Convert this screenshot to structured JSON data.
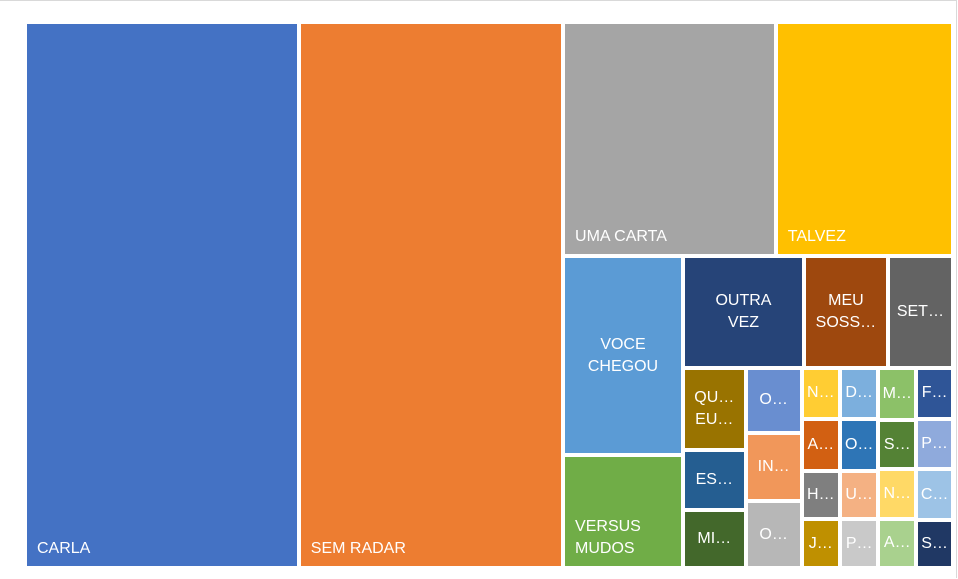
{
  "chart_data": {
    "type": "treemap",
    "categories": [
      "CARLA",
      "SEM RADAR",
      "UMA CARTA",
      "TALVEZ",
      "VOCE CHEGOU",
      "VERSUS MUDOS",
      "OUTRA VEZ",
      "MEU SOSS…",
      "SET…",
      "QU… EU…",
      "ES…",
      "MI…",
      "O…",
      "IN…",
      "O…",
      "N…",
      "A…",
      "H…",
      "J…",
      "D…",
      "O…",
      "U…",
      "P…",
      "M…",
      "S…",
      "N…",
      "A…",
      "F…",
      "P…",
      "C…",
      "S…"
    ],
    "values": [
      144,
      139,
      48,
      40,
      23,
      13,
      13,
      9,
      7,
      5,
      3.6,
      3.5,
      3.5,
      3.7,
      3.6,
      1.9,
      1.9,
      1.8,
      1.8,
      1.9,
      1.9,
      1.8,
      1.8,
      1.9,
      1.8,
      1.8,
      1.8,
      1.8,
      1.8,
      1.8,
      1.7
    ],
    "colors": [
      "#4472c4",
      "#ed7d31",
      "#a5a5a5",
      "#ffc000",
      "#5b9bd5",
      "#70ad47",
      "#264478",
      "#9e480e",
      "#636363",
      "#997300",
      "#255e91",
      "#43682b",
      "#698ed0",
      "#f1975a",
      "#b7b7b7",
      "#ffcd33",
      "#d26012",
      "#7f7f7f",
      "#bf9000",
      "#7cafdd",
      "#2e75b6",
      "#f4b183",
      "#c9c9c9",
      "#8cc168",
      "#548235",
      "#ffd966",
      "#a9d18e",
      "#2f5597",
      "#8faadc",
      "#9dc3e6",
      "#203864"
    ]
  }
}
